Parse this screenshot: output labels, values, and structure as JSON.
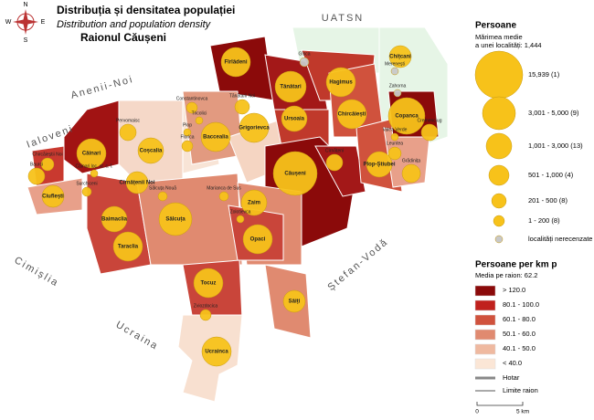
{
  "header": {
    "title": "Distribuția și densitatea populației",
    "subtitle": "Distribution and population density",
    "district": "Raionul Căușeni"
  },
  "compass": {
    "n": "N",
    "s": "S",
    "e": "E",
    "w": "W"
  },
  "neighbors": [
    "UATSN",
    "Anenii-Noi",
    "Ialoveni",
    "Cimișlia",
    "Ucraina",
    "Ștefan-Vodă"
  ],
  "places": [
    "Fîrlădeni",
    "Gîsca",
    "Merenești",
    "Chițcani",
    "Zahorna",
    "Copanca",
    "Cremenciug",
    "Hagimus",
    "Tănătari",
    "Tănătarii Noi",
    "Chircăiești",
    "Ursoaia",
    "Plop-Știubei",
    "Grădinița",
    "Leuntea",
    "Valea Verde",
    "Căușeni",
    "Cîrnățeni",
    "Grigorievca",
    "Baccealia",
    "Constantinovca",
    "Pervomaisc",
    "Coșcalia",
    "Plop",
    "Florica",
    "Căinari",
    "Căinari loc. st. c. f.",
    "Chircăieștii Noi",
    "Baurci",
    "Ciuflești",
    "Surchiceni",
    "Cîrnățenii Noi",
    "Baimaclia",
    "Taraclia",
    "Sălcuța",
    "Sălcuța Nouă",
    "Marianca de Sus",
    "Zolotievca",
    "Zaim",
    "Opaci",
    "Tocuz",
    "Săiți",
    "Zviozdocica",
    "Ucrainca",
    "Tricolici"
  ],
  "legend": {
    "population": {
      "title": "Persoane",
      "avg_size_lines": [
        "Mărimea medie",
        "a unei localități: 1,444"
      ],
      "classes": [
        "15,939 (1)",
        "3,001 - 5,000 (9)",
        "1,001 - 3,000 (13)",
        "501 - 1,000 (4)",
        "201 - 500 (8)",
        "1 - 200 (8)",
        "localități nerecenzate"
      ]
    },
    "density": {
      "title": "Persoane per km p",
      "mean": "Media pe raion: 62.2",
      "classes": [
        "> 120.0",
        "80.1 - 100.0",
        "60.1 - 80.0",
        "50.1 - 60.0",
        "40.1 - 50.0",
        "< 40.0"
      ]
    },
    "lines": [
      "Hotar",
      "Limite raion"
    ],
    "scale": [
      "0",
      "5 km"
    ]
  }
}
